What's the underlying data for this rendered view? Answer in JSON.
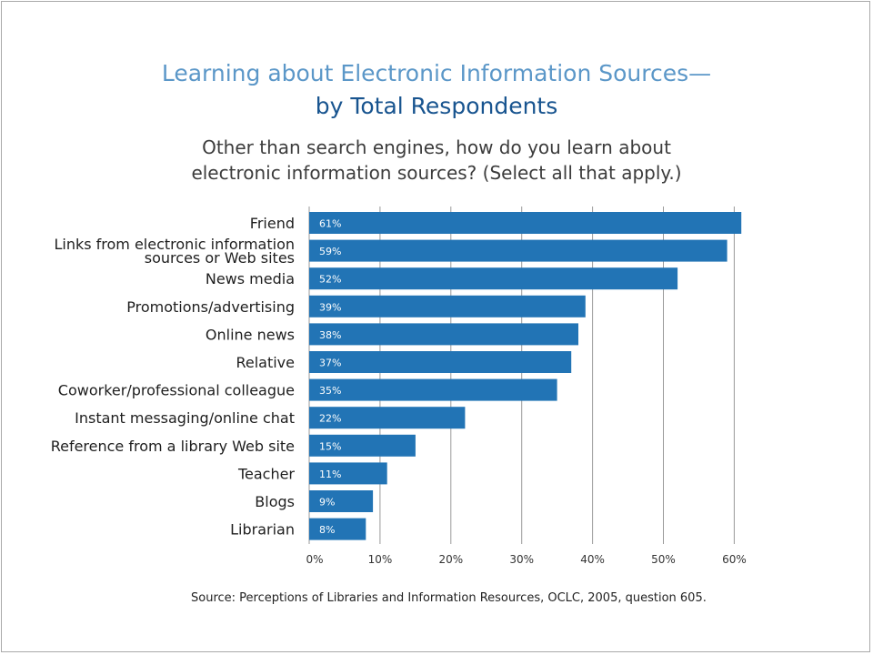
{
  "title": "Learning about Electronic Information Sources—",
  "subtitle": "by Total Respondents",
  "question_line1": "Other than search engines, how do you learn about",
  "question_line2": "electronic information sources? (Select all that apply.)",
  "source": "Source:   Perceptions of Libraries and Information Resources,   OCLC, 2005, question 605.",
  "colors": {
    "bar": "#2274b5",
    "title": "#5b97c8",
    "subtitle": "#18548f"
  },
  "chart_data": {
    "type": "bar",
    "orientation": "horizontal",
    "categories": [
      [
        "Friend"
      ],
      [
        "Links from electronic information",
        "sources or Web sites"
      ],
      [
        "News media"
      ],
      [
        "Promotions/advertising"
      ],
      [
        "Online news"
      ],
      [
        "Relative"
      ],
      [
        "Coworker/professional colleague"
      ],
      [
        "Instant messaging/online chat"
      ],
      [
        "Reference from a library Web site"
      ],
      [
        "Teacher"
      ],
      [
        "Blogs"
      ],
      [
        "Librarian"
      ]
    ],
    "values": [
      61,
      59,
      52,
      39,
      38,
      37,
      35,
      22,
      15,
      11,
      9,
      8
    ],
    "data_labels": [
      "61%",
      "59%",
      "52%",
      "39%",
      "38%",
      "37%",
      "35%",
      "22%",
      "15%",
      "11%",
      "9%",
      "8%"
    ],
    "xlim": [
      0,
      61
    ],
    "xticks": [
      0,
      10,
      20,
      30,
      40,
      50,
      60
    ],
    "xtick_labels": [
      "0%",
      "10%",
      "20%",
      "30%",
      "40%",
      "50%",
      "60%"
    ],
    "grid": true
  }
}
